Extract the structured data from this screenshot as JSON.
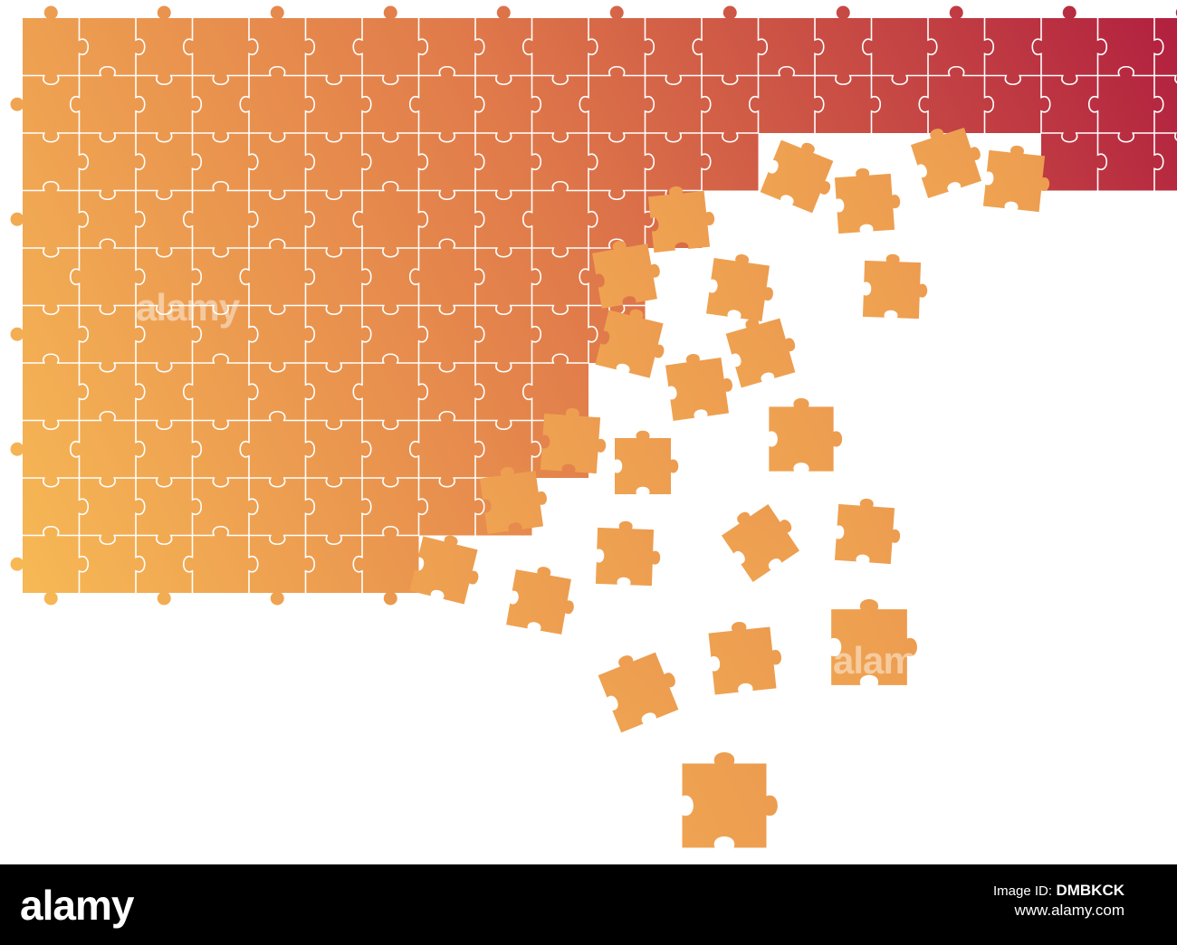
{
  "illustration": {
    "subject": "jigsaw-puzzle-breaking-apart",
    "grid": {
      "columns": 21,
      "rows": 10
    },
    "colors": {
      "gradient_light": "#f7b955",
      "gradient_mid": "#e07a4a",
      "gradient_dark": "#b2213f",
      "seam": "#ffffff",
      "background": "#ffffff"
    }
  },
  "watermark": {
    "text": "alamy"
  },
  "footer": {
    "brand": "alamy",
    "label": "Image ID:",
    "image_id": "DMBKCK",
    "url": "www.alamy.com",
    "background": "#000000"
  }
}
